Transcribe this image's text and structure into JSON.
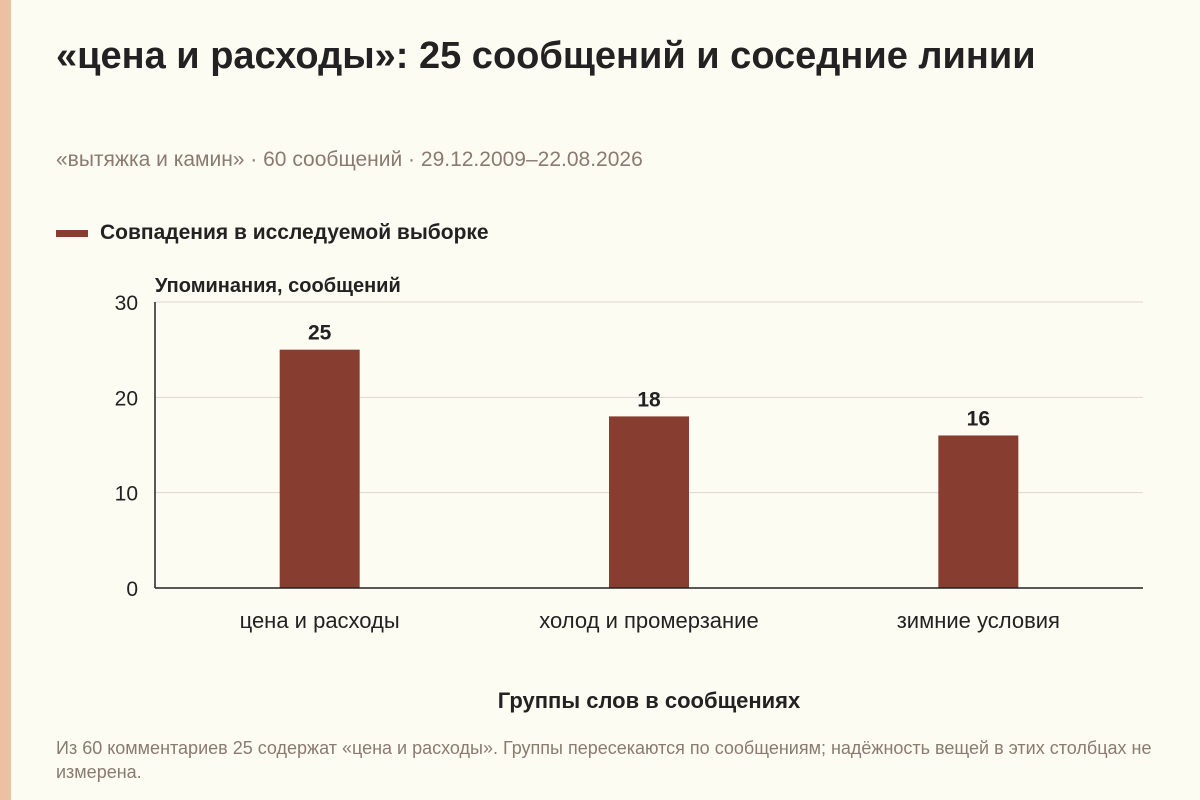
{
  "header": {
    "title": "«цена и расходы»: 25 сообщений и соседние линии",
    "subtitle": "«вытяжка и камин» · 60 сообщений · 29.12.2009–22.08.2026"
  },
  "footnote": "Из 60 комментариев 25 содержат «цена и расходы». Группы пересекаются по сообщениям; надёжность вещей в этих столбцах не измерена.",
  "colors": {
    "bar": "#873d2f",
    "accent_strip": "#edbfa3",
    "background": "#fdfcf3",
    "grid": "#dcd8cc"
  },
  "chart_data": {
    "type": "bar",
    "title": "«цена и расходы»: 25 сообщений и соседние линии",
    "categories": [
      "цена и расходы",
      "холод и промерзание",
      "зимние условия"
    ],
    "series": [
      {
        "name": "Совпадения в исследуемой выборке",
        "values": [
          25,
          18,
          16
        ]
      }
    ],
    "xlabel": "Группы слов в сообщениях",
    "ylabel": "Упоминания, сообщений",
    "ylim": [
      0,
      30
    ],
    "yticks": [
      0,
      10,
      20,
      30
    ],
    "grid": true,
    "data_labels": true,
    "legend": "top-left"
  }
}
